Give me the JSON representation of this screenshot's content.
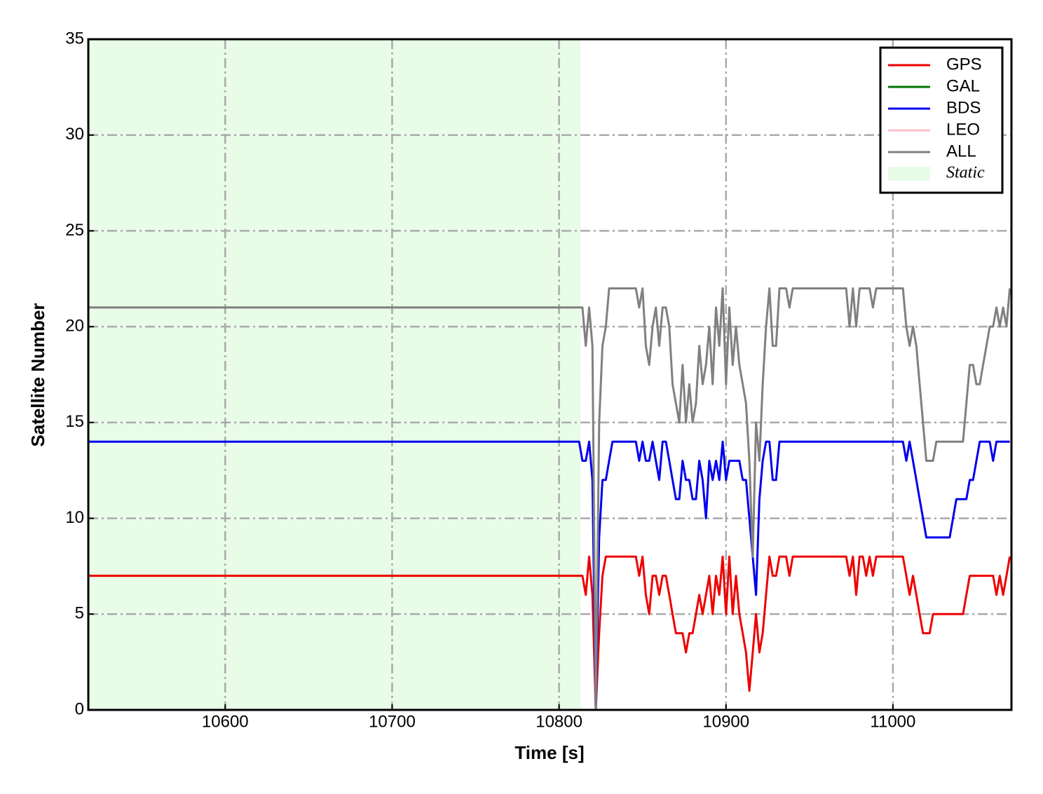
{
  "chart_data": {
    "type": "line",
    "xlabel": "Time [s]",
    "ylabel": "Satellite Number",
    "xlim": [
      10518,
      11071
    ],
    "ylim": [
      0,
      35
    ],
    "xticks": [
      10600,
      10700,
      10800,
      10900,
      11000
    ],
    "yticks": [
      0,
      5,
      10,
      15,
      20,
      25,
      30,
      35
    ],
    "grid": true,
    "legend": "upper right",
    "span": {
      "name": "Static",
      "color": "#e8fce8",
      "x": [
        10518,
        10813
      ]
    },
    "x": [
      10518,
      10812,
      10814,
      10816,
      10818,
      10820,
      10822,
      10824,
      10826,
      10828,
      10830,
      10832,
      10834,
      10836,
      10838,
      10840,
      10842,
      10844,
      10846,
      10848,
      10850,
      10852,
      10854,
      10856,
      10858,
      10860,
      10862,
      10864,
      10866,
      10868,
      10870,
      10872,
      10874,
      10876,
      10878,
      10880,
      10882,
      10884,
      10886,
      10888,
      10890,
      10892,
      10894,
      10896,
      10898,
      10900,
      10902,
      10904,
      10906,
      10908,
      10910,
      10912,
      10914,
      10916,
      10918,
      10920,
      10922,
      10924,
      10926,
      10928,
      10930,
      10932,
      10934,
      10936,
      10938,
      10940,
      10942,
      10944,
      10946,
      10948,
      10950,
      10952,
      10954,
      10956,
      10958,
      10960,
      10962,
      10964,
      10966,
      10968,
      10970,
      10972,
      10974,
      10976,
      10978,
      10980,
      10982,
      10984,
      10986,
      10988,
      10990,
      10992,
      10994,
      10996,
      10998,
      11000,
      11002,
      11004,
      11006,
      11008,
      11010,
      11012,
      11014,
      11016,
      11018,
      11020,
      11022,
      11024,
      11026,
      11028,
      11030,
      11032,
      11034,
      11036,
      11038,
      11040,
      11042,
      11044,
      11046,
      11048,
      11050,
      11052,
      11054,
      11056,
      11058,
      11060,
      11062,
      11064,
      11066,
      11068,
      11070
    ],
    "series": [
      {
        "name": "GPS",
        "color": "#ee0000",
        "values": [
          7,
          7,
          7,
          6,
          8,
          6,
          0,
          4,
          7,
          8,
          8,
          8,
          8,
          8,
          8,
          8,
          8,
          8,
          8,
          7,
          8,
          6,
          5,
          7,
          7,
          6,
          7,
          7,
          6,
          5,
          4,
          4,
          4,
          3,
          4,
          4,
          5,
          6,
          5,
          6,
          7,
          5,
          7,
          6,
          8,
          5,
          8,
          5,
          7,
          5,
          4,
          3,
          1,
          3,
          5,
          3,
          4,
          6,
          8,
          7,
          7,
          8,
          8,
          8,
          7,
          8,
          8,
          8,
          8,
          8,
          8,
          8,
          8,
          8,
          8,
          8,
          8,
          8,
          8,
          8,
          8,
          8,
          7,
          8,
          6,
          8,
          8,
          7,
          8,
          7,
          8,
          8,
          8,
          8,
          8,
          8,
          8,
          8,
          8,
          7,
          6,
          7,
          6,
          5,
          4,
          4,
          4,
          5,
          5,
          5,
          5,
          5,
          5,
          5,
          5,
          5,
          5,
          6,
          7,
          7,
          7,
          7,
          7,
          7,
          7,
          7,
          6,
          7,
          6,
          7,
          8
        ]
      },
      {
        "name": "GAL",
        "color": "#007700",
        "values": [
          null,
          null,
          null,
          null,
          null,
          null,
          null,
          null,
          null,
          null,
          null,
          null,
          null,
          null,
          null,
          null,
          null,
          null,
          null,
          null,
          null,
          null,
          null,
          null,
          null,
          null,
          null,
          null,
          null,
          null,
          null,
          null,
          null,
          null,
          null,
          null,
          null,
          null,
          null,
          null,
          null,
          null,
          null,
          null,
          null,
          null,
          null,
          null,
          null,
          null,
          null,
          null,
          null,
          null,
          null,
          null,
          null,
          null,
          null,
          null,
          null,
          null,
          null,
          null,
          null,
          null,
          null,
          null,
          null,
          null,
          null,
          null,
          null,
          null,
          null,
          null,
          null,
          null,
          null,
          null,
          null,
          null,
          null,
          null,
          null,
          null,
          null,
          null,
          null,
          null,
          null,
          null,
          null,
          null,
          null,
          null,
          null,
          null,
          null,
          null,
          null,
          null,
          null,
          null,
          null,
          null,
          null,
          null,
          null,
          null,
          null,
          null,
          null,
          null,
          null,
          null,
          null,
          null,
          null,
          null,
          null,
          null,
          null,
          null,
          null,
          null,
          null,
          null,
          null,
          null,
          null
        ]
      },
      {
        "name": "BDS",
        "color": "#0000ee",
        "values": [
          14,
          14,
          13,
          13,
          14,
          12,
          0,
          9,
          12,
          12,
          13,
          14,
          14,
          14,
          14,
          14,
          14,
          14,
          14,
          13,
          14,
          13,
          13,
          14,
          13,
          12,
          14,
          14,
          13,
          12,
          11,
          11,
          13,
          12,
          12,
          11,
          11,
          13,
          12,
          10,
          13,
          12,
          13,
          12,
          14,
          12,
          13,
          13,
          13,
          13,
          12,
          12,
          10,
          8,
          6,
          11,
          13,
          14,
          14,
          12,
          12,
          14,
          14,
          14,
          14,
          14,
          14,
          14,
          14,
          14,
          14,
          14,
          14,
          14,
          14,
          14,
          14,
          14,
          14,
          14,
          14,
          14,
          14,
          14,
          14,
          14,
          14,
          14,
          14,
          14,
          14,
          14,
          14,
          14,
          14,
          14,
          14,
          14,
          14,
          13,
          14,
          13,
          12,
          11,
          10,
          9,
          9,
          9,
          9,
          9,
          9,
          9,
          9,
          10,
          11,
          11,
          11,
          11,
          12,
          12,
          13,
          14,
          14,
          14,
          14,
          13,
          14,
          14,
          14,
          14,
          14
        ]
      },
      {
        "name": "LEO",
        "color": "#ffc0cb",
        "values": [
          null,
          null,
          null,
          null,
          null,
          null,
          null,
          null,
          null,
          null,
          null,
          null,
          null,
          null,
          null,
          null,
          null,
          null,
          null,
          null,
          null,
          null,
          null,
          null,
          null,
          null,
          null,
          null,
          null,
          null,
          null,
          null,
          null,
          null,
          null,
          null,
          null,
          null,
          null,
          null,
          null,
          null,
          null,
          null,
          null,
          null,
          null,
          null,
          null,
          null,
          null,
          null,
          null,
          null,
          null,
          null,
          null,
          null,
          null,
          null,
          null,
          null,
          null,
          null,
          null,
          null,
          null,
          null,
          null,
          null,
          null,
          null,
          null,
          null,
          null,
          null,
          null,
          null,
          null,
          null,
          null,
          null,
          null,
          null,
          null,
          null,
          null,
          null,
          null,
          null,
          null,
          null,
          null,
          null,
          null,
          null,
          null,
          null,
          null,
          null,
          null,
          null,
          null,
          null,
          null,
          null,
          null,
          null,
          null,
          null,
          null,
          null,
          null,
          null,
          null,
          null,
          null,
          null,
          null,
          null,
          null,
          null,
          null,
          null,
          null,
          null,
          null,
          null,
          null,
          null,
          null
        ]
      },
      {
        "name": "ALL",
        "color": "#808080",
        "values": [
          21,
          21,
          21,
          19,
          21,
          19,
          0,
          15,
          19,
          20,
          22,
          22,
          22,
          22,
          22,
          22,
          22,
          22,
          22,
          21,
          22,
          19,
          18,
          20,
          21,
          19,
          21,
          21,
          20,
          17,
          16,
          15,
          18,
          15,
          17,
          15,
          16,
          19,
          17,
          18,
          20,
          17,
          21,
          19,
          22,
          17,
          21,
          18,
          20,
          18,
          17,
          16,
          13,
          8,
          15,
          13,
          17,
          20,
          22,
          19,
          19,
          22,
          22,
          22,
          21,
          22,
          22,
          22,
          22,
          22,
          22,
          22,
          22,
          22,
          22,
          22,
          22,
          22,
          22,
          22,
          22,
          22,
          20,
          22,
          20,
          22,
          22,
          22,
          22,
          21,
          22,
          22,
          22,
          22,
          22,
          22,
          22,
          22,
          22,
          20,
          19,
          20,
          19,
          17,
          15,
          13,
          13,
          13,
          14,
          14,
          14,
          14,
          14,
          14,
          14,
          14,
          14,
          16,
          18,
          18,
          17,
          17,
          18,
          19,
          20,
          20,
          21,
          20,
          21,
          20,
          22
        ]
      }
    ]
  }
}
